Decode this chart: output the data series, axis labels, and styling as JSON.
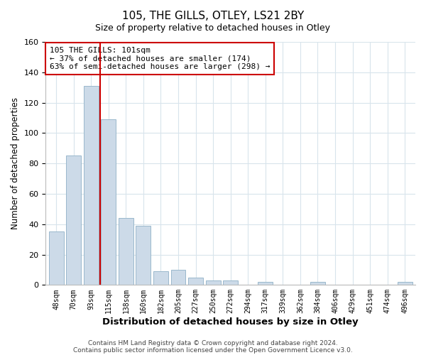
{
  "title": "105, THE GILLS, OTLEY, LS21 2BY",
  "subtitle": "Size of property relative to detached houses in Otley",
  "xlabel": "Distribution of detached houses by size in Otley",
  "ylabel": "Number of detached properties",
  "bar_labels": [
    "48sqm",
    "70sqm",
    "93sqm",
    "115sqm",
    "138sqm",
    "160sqm",
    "182sqm",
    "205sqm",
    "227sqm",
    "250sqm",
    "272sqm",
    "294sqm",
    "317sqm",
    "339sqm",
    "362sqm",
    "384sqm",
    "406sqm",
    "429sqm",
    "451sqm",
    "474sqm",
    "496sqm"
  ],
  "bar_values": [
    35,
    85,
    131,
    109,
    44,
    39,
    9,
    10,
    5,
    3,
    3,
    0,
    2,
    0,
    0,
    2,
    0,
    0,
    0,
    0,
    2
  ],
  "bar_color": "#ccdae8",
  "bar_edge_color": "#9ab8cc",
  "vline_x": 2.5,
  "vline_color": "#cc0000",
  "ylim": [
    0,
    160
  ],
  "yticks": [
    0,
    20,
    40,
    60,
    80,
    100,
    120,
    140,
    160
  ],
  "annotation_text": "105 THE GILLS: 101sqm\n← 37% of detached houses are smaller (174)\n63% of semi-detached houses are larger (298) →",
  "annotation_box_color": "#ffffff",
  "annotation_box_edge": "#cc0000",
  "footer1": "Contains HM Land Registry data © Crown copyright and database right 2024.",
  "footer2": "Contains public sector information licensed under the Open Government Licence v3.0.",
  "background_color": "#ffffff",
  "grid_color": "#d8e4ec"
}
